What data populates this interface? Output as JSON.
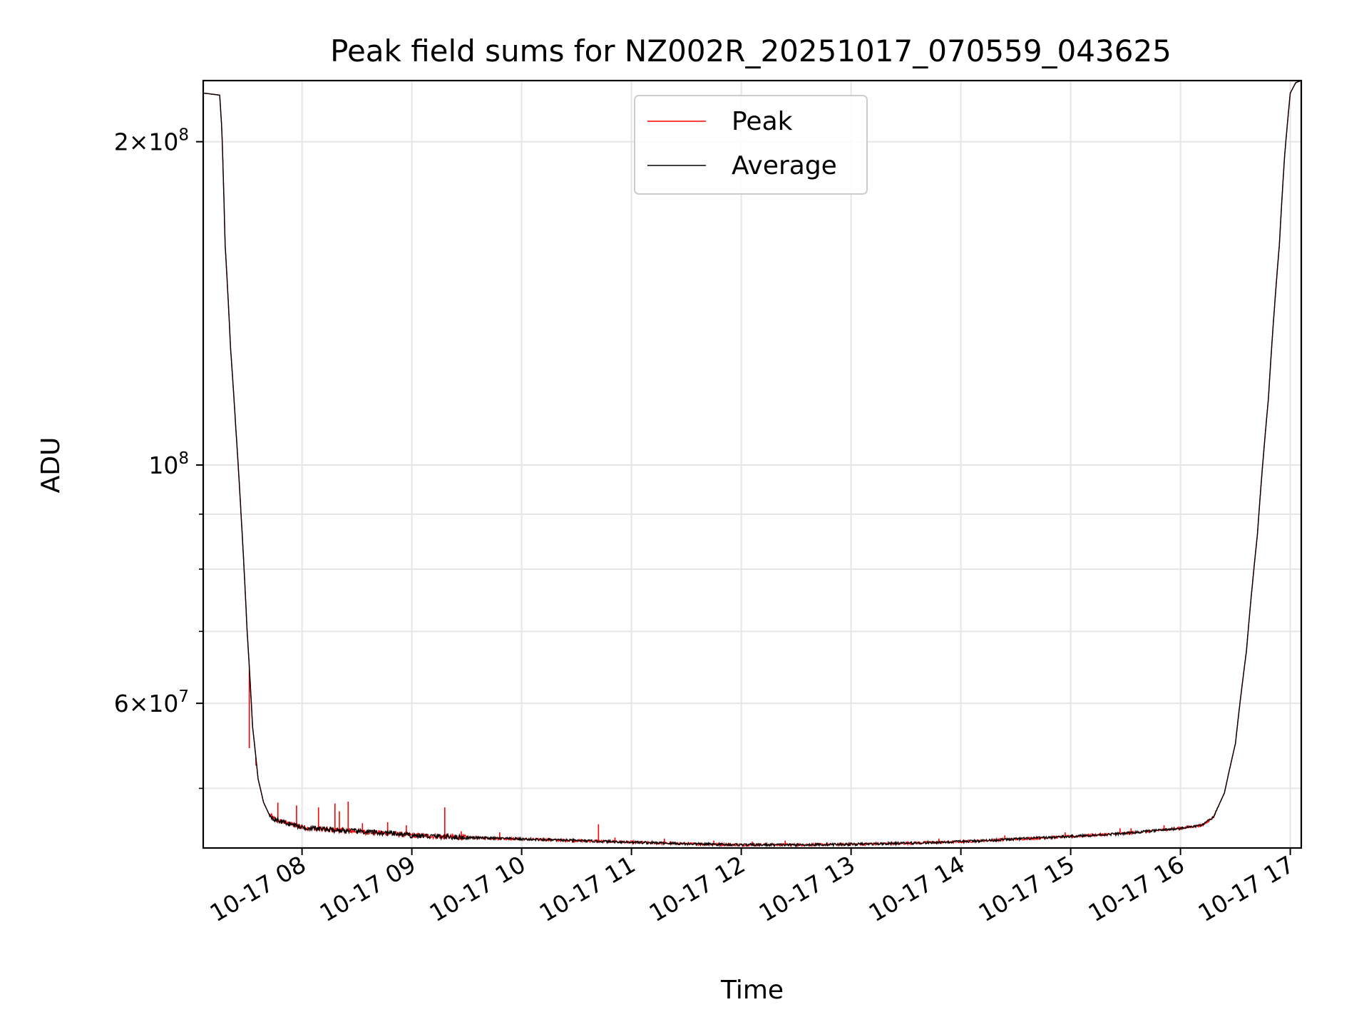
{
  "chart_data": {
    "type": "line",
    "title": "Peak field sums for NZ002R_20251017_070559_043625",
    "xlabel": "Time",
    "ylabel": "ADU",
    "yscale": "log",
    "grid": true,
    "legend_position": "top-center",
    "xlim_hours": [
      7.1,
      17.1
    ],
    "ylim": [
      44000000,
      228000000
    ],
    "x_tick_values": [
      8,
      9,
      10,
      11,
      12,
      13,
      14,
      15,
      16,
      17
    ],
    "x_tick_labels": [
      "10-17 08",
      "10-17 09",
      "10-17 10",
      "10-17 11",
      "10-17 12",
      "10-17 13",
      "10-17 14",
      "10-17 15",
      "10-17 16",
      "10-17 17"
    ],
    "y_major_ticks": [
      {
        "value": 200000000,
        "mantissa": "2",
        "exponent": "8"
      },
      {
        "value": 100000000,
        "mantissa": "",
        "exponent": "8"
      },
      {
        "value": 60000000,
        "mantissa": "6",
        "exponent": "7"
      }
    ],
    "y_minor_ticks": [
      50000000,
      70000000,
      80000000,
      90000000
    ],
    "series": [
      {
        "name": "Peak",
        "color": "#ff0000",
        "x_hours": [
          7.1,
          7.25,
          7.27,
          7.3,
          7.35,
          7.4,
          7.45,
          7.5,
          7.55,
          7.6,
          7.65,
          7.7,
          7.75,
          7.8,
          7.9,
          8.0,
          8.2,
          8.5,
          8.8,
          9.0,
          9.5,
          10.0,
          10.5,
          11.0,
          11.5,
          12.0,
          12.5,
          13.0,
          13.5,
          14.0,
          14.5,
          15.0,
          15.5,
          16.0,
          16.2,
          16.3,
          16.4,
          16.5,
          16.6,
          16.7,
          16.8,
          16.9,
          16.95,
          17.0,
          17.05,
          17.1
        ],
        "values_millions": [
          222,
          221,
          205,
          160,
          128,
          107,
          88,
          70,
          57,
          51,
          48.5,
          47.3,
          46.8,
          46.6,
          46.3,
          46.0,
          45.8,
          45.6,
          45.4,
          45.2,
          45.0,
          44.85,
          44.7,
          44.55,
          44.4,
          44.3,
          44.3,
          44.35,
          44.45,
          44.6,
          44.85,
          45.1,
          45.4,
          45.9,
          46.2,
          47.0,
          49.5,
          55,
          67,
          86,
          115,
          160,
          195,
          222,
          227,
          228
        ],
        "spikes": [
          {
            "x": 7.52,
            "top": 54.5
          },
          {
            "x": 7.58,
            "top": 52.5
          },
          {
            "x": 7.78,
            "top": 48.5
          },
          {
            "x": 7.95,
            "top": 48.2
          },
          {
            "x": 8.15,
            "top": 48.0
          },
          {
            "x": 8.3,
            "top": 48.4
          },
          {
            "x": 8.34,
            "top": 47.6
          },
          {
            "x": 8.42,
            "top": 48.6
          },
          {
            "x": 8.55,
            "top": 46.4
          },
          {
            "x": 8.78,
            "top": 46.5
          },
          {
            "x": 8.95,
            "top": 46.2
          },
          {
            "x": 9.3,
            "top": 48.0
          },
          {
            "x": 9.45,
            "top": 45.6
          },
          {
            "x": 9.8,
            "top": 45.5
          },
          {
            "x": 10.7,
            "top": 46.3
          },
          {
            "x": 10.85,
            "top": 45.0
          },
          {
            "x": 11.3,
            "top": 44.9
          },
          {
            "x": 11.75,
            "top": 44.7
          },
          {
            "x": 12.1,
            "top": 44.6
          },
          {
            "x": 12.4,
            "top": 44.7
          },
          {
            "x": 13.8,
            "top": 44.9
          },
          {
            "x": 14.4,
            "top": 45.2
          },
          {
            "x": 14.95,
            "top": 45.5
          },
          {
            "x": 15.45,
            "top": 45.9
          },
          {
            "x": 15.55,
            "top": 45.9
          },
          {
            "x": 15.85,
            "top": 46.2
          },
          {
            "x": 16.25,
            "top": 46.8
          }
        ]
      },
      {
        "name": "Average",
        "color": "#000000",
        "x_hours": [
          7.1,
          7.25,
          7.27,
          7.3,
          7.35,
          7.4,
          7.45,
          7.5,
          7.55,
          7.6,
          7.65,
          7.7,
          7.75,
          7.8,
          7.9,
          8.0,
          8.2,
          8.5,
          8.8,
          9.0,
          9.5,
          10.0,
          10.5,
          11.0,
          11.5,
          12.0,
          12.5,
          13.0,
          13.5,
          14.0,
          14.5,
          15.0,
          15.5,
          16.0,
          16.2,
          16.3,
          16.4,
          16.5,
          16.6,
          16.7,
          16.8,
          16.9,
          16.95,
          17.0,
          17.05,
          17.1
        ],
        "values_millions": [
          222,
          221,
          205,
          160,
          128,
          107,
          88,
          70,
          57,
          51,
          48.5,
          47.3,
          46.8,
          46.6,
          46.3,
          46.0,
          45.8,
          45.6,
          45.4,
          45.2,
          45.0,
          44.85,
          44.7,
          44.55,
          44.4,
          44.3,
          44.3,
          44.35,
          44.45,
          44.6,
          44.85,
          45.1,
          45.4,
          45.9,
          46.2,
          47.0,
          49.5,
          55,
          67,
          86,
          115,
          160,
          195,
          222,
          227,
          228
        ]
      }
    ]
  }
}
